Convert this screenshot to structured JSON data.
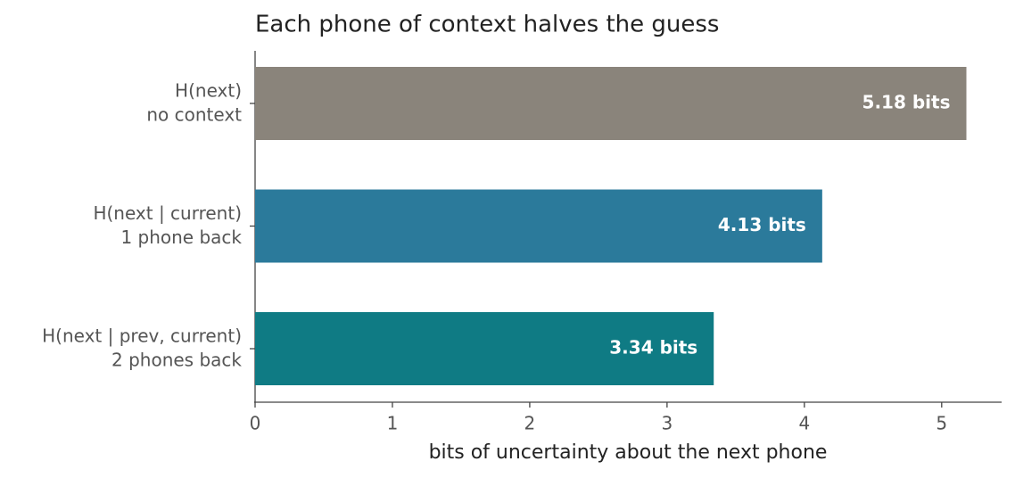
{
  "chart_data": {
    "type": "barh",
    "title": "Each phone of context halves the guess",
    "xlabel": "bits of uncertainty about the next phone",
    "categories": [
      "H(next)\nno context",
      "H(next | current)\n1 phone back",
      "H(next | prev, current)\n2 phones back"
    ],
    "values": [
      5.18,
      4.13,
      3.34
    ],
    "value_labels": [
      "5.18 bits",
      "4.13 bits",
      "3.34 bits"
    ],
    "colors": [
      "#8a847b",
      "#2b7a9b",
      "#0f7b84"
    ],
    "xlim": [
      0,
      5.43
    ],
    "xticks": [
      0,
      1,
      2,
      3,
      4,
      5
    ],
    "grid": false
  }
}
